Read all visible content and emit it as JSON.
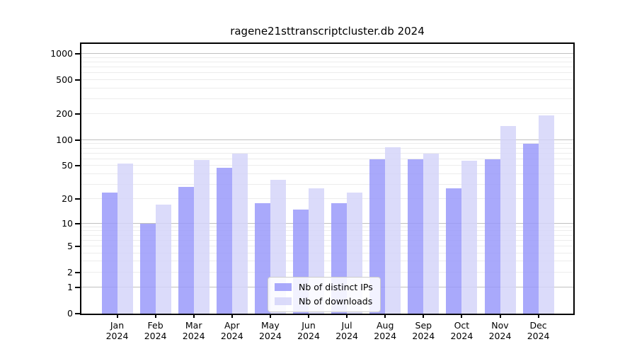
{
  "chart_data": {
    "type": "bar",
    "title": "ragene21sttranscriptcluster.db 2024",
    "categories": [
      "Jan",
      "Feb",
      "Mar",
      "Apr",
      "May",
      "Jun",
      "Jul",
      "Aug",
      "Sep",
      "Oct",
      "Nov",
      "Dec"
    ],
    "xtick_year": "2024",
    "series": [
      {
        "name": "Nb of distinct IPs",
        "color": "#9696fa",
        "values": [
          24,
          10,
          28,
          47,
          18,
          15,
          18,
          60,
          60,
          27,
          60,
          90
        ]
      },
      {
        "name": "Nb of downloads",
        "color": "#d3d3f9",
        "values": [
          53,
          17,
          58,
          70,
          34,
          27,
          24,
          83,
          70,
          57,
          145,
          195
        ]
      }
    ],
    "bar_opacity": 0.82,
    "yscale": "log1p",
    "yticks": [
      0,
      1,
      2,
      5,
      10,
      20,
      50,
      100,
      200,
      500,
      1000
    ],
    "ylim": [
      0,
      1300
    ],
    "xlabel": "",
    "ylabel": "",
    "grid": "horizontal",
    "legend_position": "inside-bottom-center",
    "axis_color": "#000000",
    "major_grid_color": "#c0c0c0",
    "minor_grid_color": "#ececec",
    "background": "#ffffff"
  }
}
